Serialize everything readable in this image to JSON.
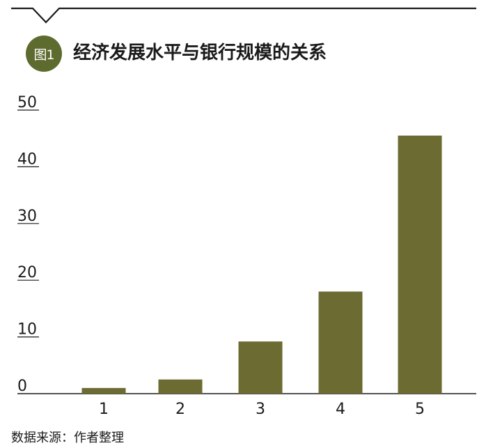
{
  "header": {
    "badge": "图1",
    "title": "经济发展水平与银行规模的关系"
  },
  "colors": {
    "accent": "#5e6b2f",
    "bar": "#6b6b32",
    "rule": "#1a1a1a"
  },
  "chart_data": {
    "type": "bar",
    "title": "经济发展水平与银行规模的关系",
    "xlabel": "",
    "ylabel": "",
    "categories": [
      "1",
      "2",
      "3",
      "4",
      "5"
    ],
    "values": [
      1,
      2.5,
      9.2,
      18,
      45.5
    ],
    "ylim": [
      0,
      50
    ],
    "yticks": [
      "0",
      "10",
      "20",
      "30",
      "40",
      "50"
    ],
    "grid": false,
    "legend": "none"
  },
  "footer": {
    "source": "数据来源：作者整理"
  }
}
